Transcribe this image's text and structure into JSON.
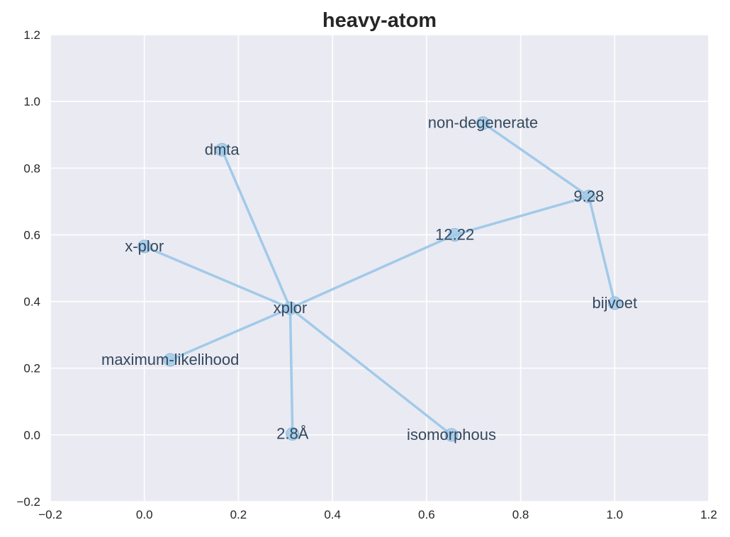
{
  "chart_data": {
    "type": "network",
    "title": "heavy-atom",
    "xlim": [
      -0.2,
      1.2
    ],
    "ylim": [
      -0.2,
      1.2
    ],
    "xticks": [
      -0.2,
      0.0,
      0.2,
      0.4,
      0.6,
      0.8,
      1.0,
      1.2
    ],
    "yticks": [
      -0.2,
      0.0,
      0.2,
      0.4,
      0.6,
      0.8,
      1.0,
      1.2
    ],
    "grid": true,
    "colors": {
      "background": "#eaeaf2",
      "grid": "#ffffff",
      "edge": "#a1cae9",
      "node": "#a1cae9",
      "label": "#34495e"
    },
    "nodes": [
      {
        "id": "xplor",
        "label": "xplor",
        "x": 0.31,
        "y": 0.38
      },
      {
        "id": "dmta",
        "label": "dmta",
        "x": 0.165,
        "y": 0.855
      },
      {
        "id": "x-plor",
        "label": "x-plor",
        "x": 0.0,
        "y": 0.565
      },
      {
        "id": "maximum-likelihood",
        "label": "maximum-likelihood",
        "x": 0.055,
        "y": 0.225
      },
      {
        "id": "2.8A",
        "label": "2.8Å",
        "x": 0.315,
        "y": 0.003
      },
      {
        "id": "isomorphous",
        "label": "isomorphous",
        "x": 0.653,
        "y": 0.0
      },
      {
        "id": "12.22",
        "label": "12.22",
        "x": 0.66,
        "y": 0.6
      },
      {
        "id": "9.28",
        "label": "9.28",
        "x": 0.945,
        "y": 0.715
      },
      {
        "id": "non-degenerate",
        "label": "non-degenerate",
        "x": 0.72,
        "y": 0.935
      },
      {
        "id": "bijvoet",
        "label": "bijvoet",
        "x": 1.0,
        "y": 0.395
      }
    ],
    "edges": [
      [
        "xplor",
        "dmta"
      ],
      [
        "xplor",
        "x-plor"
      ],
      [
        "xplor",
        "maximum-likelihood"
      ],
      [
        "xplor",
        "2.8A"
      ],
      [
        "xplor",
        "isomorphous"
      ],
      [
        "xplor",
        "12.22"
      ],
      [
        "12.22",
        "9.28"
      ],
      [
        "9.28",
        "non-degenerate"
      ],
      [
        "9.28",
        "bijvoet"
      ]
    ]
  }
}
